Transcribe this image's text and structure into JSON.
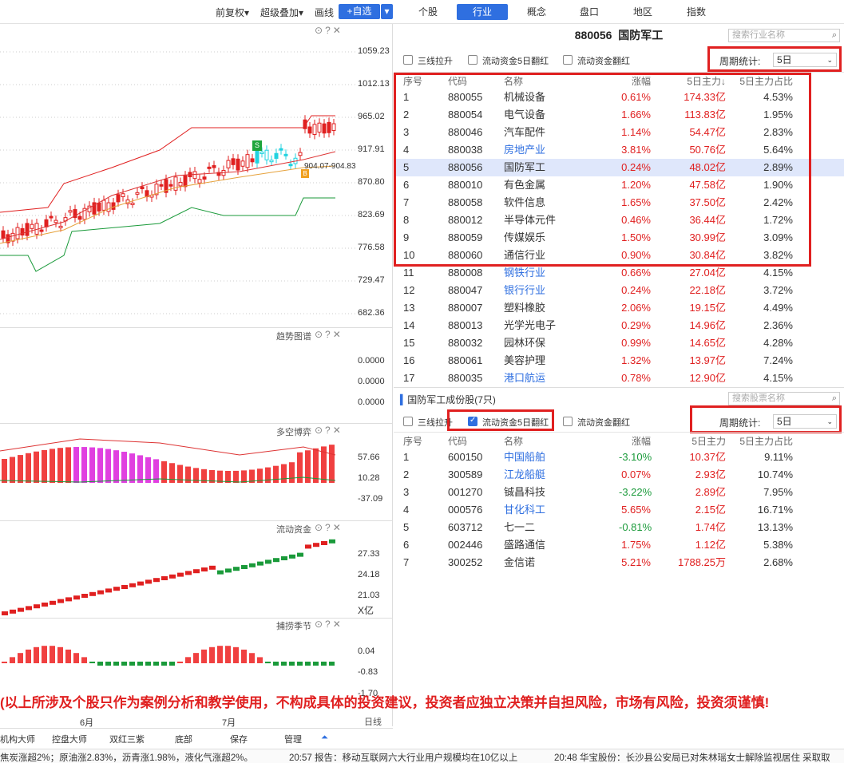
{
  "toolbar": {
    "items": [
      "前复权",
      "超级叠加",
      "画线"
    ],
    "add_label": "+自选",
    "tabs": [
      "个股",
      "行业",
      "概念",
      "盘口",
      "地区",
      "指数"
    ],
    "active_tab": "行业"
  },
  "left_chart": {
    "price_axis": [
      "1059.23",
      "1012.13",
      "965.02",
      "917.91",
      "870.80",
      "823.69",
      "776.58",
      "729.47",
      "682.36"
    ],
    "price_annotation": "904.07-904.83",
    "buy_marker": "B",
    "sell_marker": "S",
    "sub_panels": [
      {
        "title": "趋势图谱",
        "axis": [
          "0.0000",
          "0.0000",
          "0.0000"
        ]
      },
      {
        "title": "多空博弈",
        "axis": [
          "57.66",
          "10.28",
          "-37.09"
        ]
      },
      {
        "title": "流动资金",
        "axis": [
          "27.33",
          "24.18",
          "21.03",
          "X亿"
        ]
      },
      {
        "title": "捕捞季节",
        "axis": [
          "0.04",
          "-0.83",
          "-1.70"
        ]
      }
    ],
    "date_labels": [
      "6月",
      "7月"
    ],
    "period_label": "日线"
  },
  "industry_panel": {
    "title_code": "880056",
    "title_name": "国防军工",
    "search_placeholder": "搜索行业名称",
    "checkboxes": [
      "三线拉升",
      "流动资金5日翻红",
      "流动资金翻红"
    ],
    "period_label": "周期统计:",
    "period_value": "5日",
    "headers": [
      "序号",
      "代码",
      "名称",
      "涨幅",
      "5日主力↓",
      "5日主力占比"
    ],
    "rows": [
      [
        "1",
        "880055",
        "机械设备",
        "0.61%",
        "174.33亿",
        "4.53%"
      ],
      [
        "2",
        "880054",
        "电气设备",
        "1.66%",
        "113.83亿",
        "1.95%"
      ],
      [
        "3",
        "880046",
        "汽车配件",
        "1.14%",
        "54.47亿",
        "2.83%"
      ],
      [
        "4",
        "880038",
        "房地产业",
        "3.81%",
        "50.76亿",
        "5.64%"
      ],
      [
        "5",
        "880056",
        "国防军工",
        "0.24%",
        "48.02亿",
        "2.89%"
      ],
      [
        "6",
        "880010",
        "有色金属",
        "1.20%",
        "47.58亿",
        "1.90%"
      ],
      [
        "7",
        "880058",
        "软件信息",
        "1.65%",
        "37.50亿",
        "2.42%"
      ],
      [
        "8",
        "880012",
        "半导体元件",
        "0.46%",
        "36.44亿",
        "1.72%"
      ],
      [
        "9",
        "880059",
        "传媒娱乐",
        "1.50%",
        "30.99亿",
        "3.09%"
      ],
      [
        "10",
        "880060",
        "通信行业",
        "0.90%",
        "30.84亿",
        "3.82%"
      ],
      [
        "11",
        "880008",
        "钢铁行业",
        "0.66%",
        "27.04亿",
        "4.15%"
      ],
      [
        "12",
        "880047",
        "银行行业",
        "0.24%",
        "22.18亿",
        "3.72%"
      ],
      [
        "13",
        "880007",
        "塑料橡胶",
        "2.06%",
        "19.15亿",
        "4.49%"
      ],
      [
        "14",
        "880013",
        "光学光电子",
        "0.29%",
        "14.96亿",
        "2.36%"
      ],
      [
        "15",
        "880032",
        "园林环保",
        "0.99%",
        "14.65亿",
        "4.28%"
      ],
      [
        "16",
        "880061",
        "美容护理",
        "1.32%",
        "13.97亿",
        "7.24%"
      ],
      [
        "17",
        "880035",
        "港口航运",
        "0.78%",
        "12.90亿",
        "4.15%"
      ]
    ]
  },
  "stock_panel": {
    "title": "国防军工成份股(7只)",
    "search_placeholder": "搜索股票名称",
    "checkboxes": [
      "三线拉升",
      "流动资金5日翻红",
      "流动资金翻红"
    ],
    "period_label": "周期统计:",
    "period_value": "5日",
    "headers": [
      "序号",
      "代码",
      "名称",
      "涨幅",
      "5日主力",
      "5日主力占比"
    ],
    "rows": [
      [
        "1",
        "600150",
        "中国船舶",
        "-3.10%",
        "10.37亿",
        "9.11%"
      ],
      [
        "2",
        "300589",
        "江龙船艇",
        "0.07%",
        "2.93亿",
        "10.74%"
      ],
      [
        "3",
        "001270",
        "铖昌科技",
        "-3.22%",
        "2.89亿",
        "7.95%"
      ],
      [
        "4",
        "000576",
        "甘化科工",
        "5.65%",
        "2.15亿",
        "16.71%"
      ],
      [
        "5",
        "603712",
        "七一二",
        "-0.81%",
        "1.74亿",
        "13.13%"
      ],
      [
        "6",
        "002446",
        "盛路通信",
        "1.75%",
        "1.12亿",
        "5.38%"
      ],
      [
        "7",
        "300252",
        "金信诺",
        "5.21%",
        "1788.25万",
        "2.68%"
      ]
    ]
  },
  "disclaimer": "(以上所涉及个股只作为案例分析和教学使用，不构成具体的投资建议，投资者应独立决策并自担风险，市场有风险，投资须谨慎!",
  "bottom_tabs": [
    "机构大师",
    "控盘大师",
    "双红三紫",
    "底部",
    "保存",
    "管理"
  ],
  "ticker": [
    "焦炭涨超2%；原油涨2.83%，沥青涨1.98%，液化气涨超2%。",
    "20:57 报告：移动互联网六大行业用户规模均在10亿以上",
    "20:48 华宝股份：长沙县公安局已对朱林瑶女士解除监视居住 采取取"
  ],
  "colors": {
    "accent": "#2f6fe0",
    "up": "#e02020",
    "down": "#1a9a3a",
    "highlight": "#e02020"
  }
}
